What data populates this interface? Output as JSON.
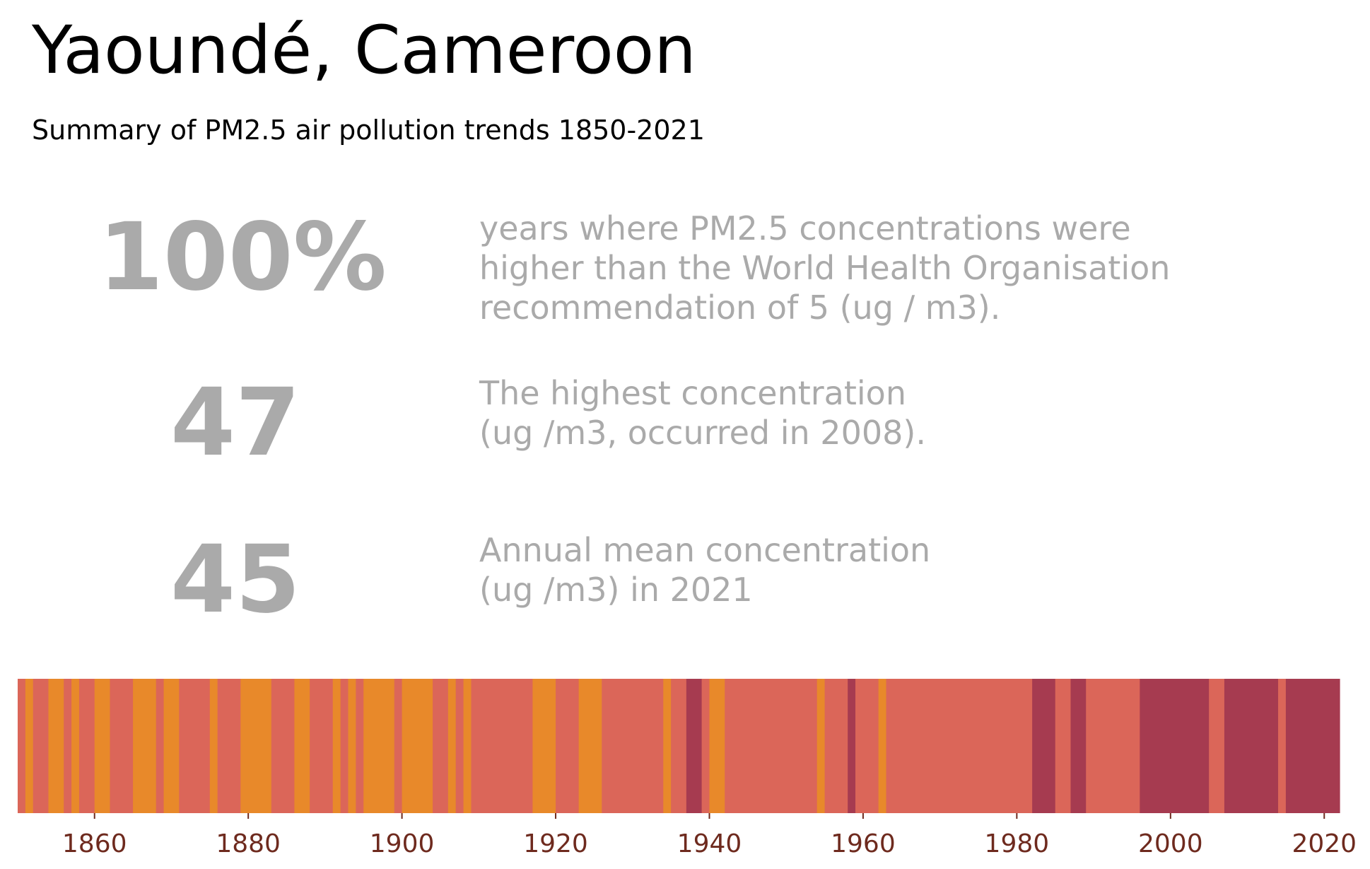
{
  "header": {
    "title": "Yaoundé, Cameroon",
    "subtitle": "Summary of PM2.5 air pollution trends 1850-2021"
  },
  "stats": [
    {
      "value": "100%",
      "lines": [
        "years where PM2.5 concentrations were",
        "higher than the World Health Organisation",
        "recommendation of 5 (ug / m3)."
      ]
    },
    {
      "value": "47",
      "lines": [
        "The highest concentration",
        "(ug /m3, occurred in 2008)."
      ]
    },
    {
      "value": "45",
      "lines": [
        "Annual mean concentration",
        "(ug /m3) in 2021"
      ]
    }
  ],
  "colors": {
    "orange": "#e8892a",
    "salmon": "#db6659",
    "crimson": "#a63b50",
    "tick": "#6e2a1e"
  },
  "chart_data": {
    "type": "heatmap",
    "title": "",
    "xlabel": "",
    "ylabel": "",
    "xlim": [
      1850,
      2022
    ],
    "x_ticks": [
      1860,
      1880,
      1900,
      1920,
      1940,
      1960,
      1980,
      2000,
      2020
    ],
    "legend": "none",
    "grid": false,
    "segments": [
      {
        "start": 1850,
        "end": 1851,
        "level": "salmon"
      },
      {
        "start": 1851,
        "end": 1852,
        "level": "orange"
      },
      {
        "start": 1852,
        "end": 1854,
        "level": "salmon"
      },
      {
        "start": 1854,
        "end": 1856,
        "level": "orange"
      },
      {
        "start": 1856,
        "end": 1857,
        "level": "salmon"
      },
      {
        "start": 1857,
        "end": 1858,
        "level": "orange"
      },
      {
        "start": 1858,
        "end": 1860,
        "level": "salmon"
      },
      {
        "start": 1860,
        "end": 1862,
        "level": "orange"
      },
      {
        "start": 1862,
        "end": 1865,
        "level": "salmon"
      },
      {
        "start": 1865,
        "end": 1868,
        "level": "orange"
      },
      {
        "start": 1868,
        "end": 1869,
        "level": "salmon"
      },
      {
        "start": 1869,
        "end": 1871,
        "level": "orange"
      },
      {
        "start": 1871,
        "end": 1875,
        "level": "salmon"
      },
      {
        "start": 1875,
        "end": 1876,
        "level": "orange"
      },
      {
        "start": 1876,
        "end": 1879,
        "level": "salmon"
      },
      {
        "start": 1879,
        "end": 1883,
        "level": "orange"
      },
      {
        "start": 1883,
        "end": 1886,
        "level": "salmon"
      },
      {
        "start": 1886,
        "end": 1888,
        "level": "orange"
      },
      {
        "start": 1888,
        "end": 1891,
        "level": "salmon"
      },
      {
        "start": 1891,
        "end": 1892,
        "level": "orange"
      },
      {
        "start": 1892,
        "end": 1893,
        "level": "salmon"
      },
      {
        "start": 1893,
        "end": 1894,
        "level": "orange"
      },
      {
        "start": 1894,
        "end": 1895,
        "level": "salmon"
      },
      {
        "start": 1895,
        "end": 1899,
        "level": "orange"
      },
      {
        "start": 1899,
        "end": 1900,
        "level": "salmon"
      },
      {
        "start": 1900,
        "end": 1904,
        "level": "orange"
      },
      {
        "start": 1904,
        "end": 1906,
        "level": "salmon"
      },
      {
        "start": 1906,
        "end": 1907,
        "level": "orange"
      },
      {
        "start": 1907,
        "end": 1908,
        "level": "salmon"
      },
      {
        "start": 1908,
        "end": 1909,
        "level": "orange"
      },
      {
        "start": 1909,
        "end": 1917,
        "level": "salmon"
      },
      {
        "start": 1917,
        "end": 1920,
        "level": "orange"
      },
      {
        "start": 1920,
        "end": 1923,
        "level": "salmon"
      },
      {
        "start": 1923,
        "end": 1926,
        "level": "orange"
      },
      {
        "start": 1926,
        "end": 1934,
        "level": "salmon"
      },
      {
        "start": 1934,
        "end": 1935,
        "level": "orange"
      },
      {
        "start": 1935,
        "end": 1937,
        "level": "salmon"
      },
      {
        "start": 1937,
        "end": 1939,
        "level": "crimson"
      },
      {
        "start": 1939,
        "end": 1940,
        "level": "salmon"
      },
      {
        "start": 1940,
        "end": 1942,
        "level": "orange"
      },
      {
        "start": 1942,
        "end": 1954,
        "level": "salmon"
      },
      {
        "start": 1954,
        "end": 1955,
        "level": "orange"
      },
      {
        "start": 1955,
        "end": 1958,
        "level": "salmon"
      },
      {
        "start": 1958,
        "end": 1959,
        "level": "crimson"
      },
      {
        "start": 1959,
        "end": 1962,
        "level": "salmon"
      },
      {
        "start": 1962,
        "end": 1963,
        "level": "orange"
      },
      {
        "start": 1963,
        "end": 1982,
        "level": "salmon"
      },
      {
        "start": 1982,
        "end": 1985,
        "level": "crimson"
      },
      {
        "start": 1985,
        "end": 1987,
        "level": "salmon"
      },
      {
        "start": 1987,
        "end": 1989,
        "level": "crimson"
      },
      {
        "start": 1989,
        "end": 1996,
        "level": "salmon"
      },
      {
        "start": 1996,
        "end": 2005,
        "level": "crimson"
      },
      {
        "start": 2005,
        "end": 2007,
        "level": "salmon"
      },
      {
        "start": 2007,
        "end": 2014,
        "level": "crimson"
      },
      {
        "start": 2014,
        "end": 2015,
        "level": "salmon"
      },
      {
        "start": 2015,
        "end": 2022,
        "level": "crimson"
      }
    ]
  }
}
